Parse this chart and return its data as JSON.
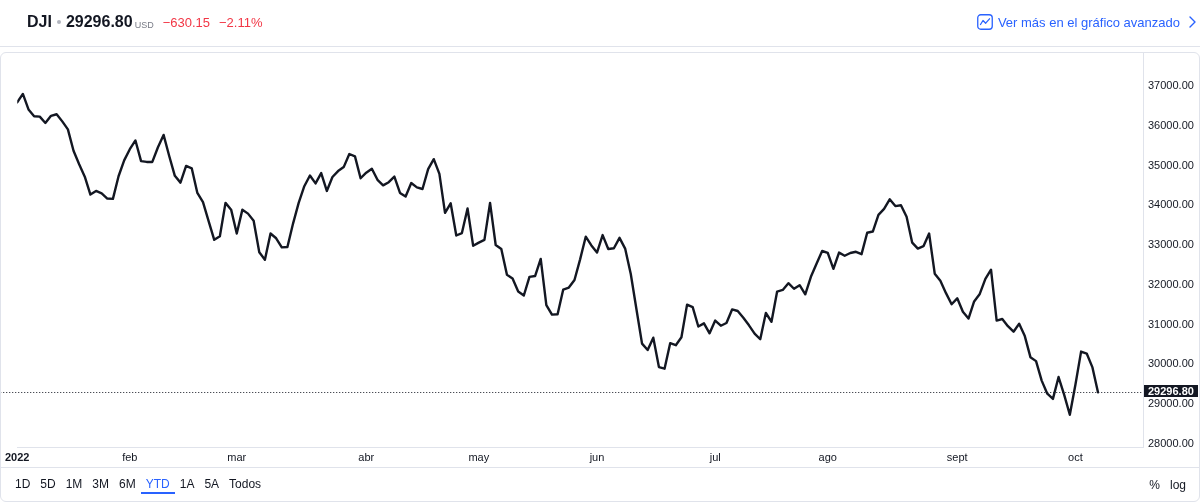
{
  "chart_data": {
    "type": "line",
    "title": "DJI",
    "categories": [
      "2022",
      null,
      null,
      null,
      null,
      null,
      null,
      null,
      null,
      null,
      null,
      null,
      null,
      null,
      null,
      null,
      null,
      null,
      null,
      null,
      "feb",
      null,
      null,
      null,
      null,
      null,
      null,
      null,
      null,
      null,
      null,
      null,
      null,
      null,
      null,
      null,
      null,
      null,
      null,
      "mar",
      null,
      null,
      null,
      null,
      null,
      null,
      null,
      null,
      null,
      null,
      null,
      null,
      null,
      null,
      null,
      null,
      null,
      null,
      null,
      null,
      null,
      null,
      "abr",
      null,
      null,
      null,
      null,
      null,
      null,
      null,
      null,
      null,
      null,
      null,
      null,
      null,
      null,
      null,
      null,
      null,
      null,
      null,
      "may",
      null,
      null,
      null,
      null,
      null,
      null,
      null,
      null,
      null,
      null,
      null,
      null,
      null,
      null,
      null,
      null,
      null,
      null,
      null,
      null,
      "jun",
      null,
      null,
      null,
      null,
      null,
      null,
      null,
      null,
      null,
      null,
      null,
      null,
      null,
      null,
      null,
      null,
      null,
      null,
      null,
      null,
      "jul",
      null,
      null,
      null,
      null,
      null,
      null,
      null,
      null,
      null,
      null,
      null,
      null,
      null,
      null,
      null,
      null,
      null,
      null,
      null,
      "ago",
      null,
      null,
      null,
      null,
      null,
      null,
      null,
      null,
      null,
      null,
      null,
      null,
      null,
      null,
      null,
      null,
      null,
      null,
      null,
      null,
      null,
      null,
      "sept",
      null,
      null,
      null,
      null,
      null,
      null,
      null,
      null,
      null,
      null,
      null,
      null,
      null,
      null,
      null,
      null,
      null,
      null,
      null,
      null,
      "oct",
      null,
      null,
      null,
      null
    ],
    "values": [
      36590,
      36800,
      36410,
      36240,
      36230,
      36070,
      36250,
      36290,
      36110,
      35910,
      35370,
      35030,
      34720,
      34270,
      34360,
      34300,
      34170,
      34160,
      34730,
      35130,
      35410,
      35630,
      35110,
      35090,
      35090,
      35460,
      35770,
      35240,
      34740,
      34570,
      34990,
      34930,
      34310,
      34080,
      33600,
      33130,
      33220,
      34060,
      33890,
      33290,
      33890,
      33790,
      33610,
      32820,
      32630,
      33290,
      33170,
      32940,
      32950,
      33540,
      34060,
      34480,
      34750,
      34550,
      34810,
      34360,
      34710,
      34860,
      34960,
      35290,
      35230,
      34680,
      34820,
      34920,
      34640,
      34500,
      34580,
      34720,
      34310,
      34220,
      34560,
      34450,
      34410,
      34910,
      35160,
      34790,
      33810,
      34050,
      33240,
      33300,
      33920,
      32980,
      33060,
      33130,
      34060,
      33000,
      32900,
      32250,
      32160,
      31830,
      31730,
      32200,
      32220,
      32650,
      31490,
      31250,
      31260,
      31880,
      31930,
      32120,
      32640,
      33210,
      32990,
      32810,
      33250,
      32900,
      32920,
      33180,
      32910,
      32270,
      31390,
      30520,
      30360,
      30670,
      29930,
      29890,
      30530,
      30480,
      30680,
      31500,
      31440,
      30950,
      31030,
      30780,
      31100,
      30970,
      31040,
      31380,
      31340,
      31170,
      30980,
      30770,
      30630,
      31290,
      31070,
      31830,
      31870,
      32040,
      31900,
      31990,
      31760,
      32200,
      32530,
      32850,
      32800,
      32400,
      32810,
      32730,
      32800,
      32830,
      32770,
      33310,
      33340,
      33760,
      33910,
      34150,
      33980,
      34000,
      33710,
      33060,
      32910,
      32970,
      33290,
      32280,
      32100,
      31790,
      31510,
      31660,
      31320,
      31150,
      31580,
      31770,
      32150,
      32380,
      31100,
      31140,
      30960,
      30820,
      31020,
      30710,
      30180,
      30080,
      29590,
      29260,
      29130,
      29680,
      29230,
      28730,
      29490,
      30320,
      30270,
      29930,
      29296.8
    ],
    "color": "#131722",
    "marker": "none",
    "ylim": [
      27920,
      37830
    ],
    "yticks": [
      {
        "value": 28000,
        "label": "28000.00"
      },
      {
        "value": 29000,
        "label": "29000.00"
      },
      {
        "value": 30000,
        "label": "30000.00"
      },
      {
        "value": 31000,
        "label": "31000.00"
      },
      {
        "value": 32000,
        "label": "32000.00"
      },
      {
        "value": 33000,
        "label": "33000.00"
      },
      {
        "value": 34000,
        "label": "34000.00"
      },
      {
        "value": 35000,
        "label": "35000.00"
      },
      {
        "value": 36000,
        "label": "36000.00"
      },
      {
        "value": 37000,
        "label": "37000.00"
      }
    ],
    "ref_lines": [
      {
        "axis": "y",
        "value": 29296.8,
        "label": "29296.80",
        "color": "#131722",
        "line_style": "dotted"
      }
    ],
    "annotations": [
      "29296.80",
      "USD",
      "−630.15",
      "−2.11%",
      "Ver más en el gráfico avanzado",
      "1D",
      "5D",
      "1M",
      "3M",
      "6M",
      "YTD",
      "1A",
      "5A",
      "Todos",
      "%",
      "log"
    ]
  }
}
